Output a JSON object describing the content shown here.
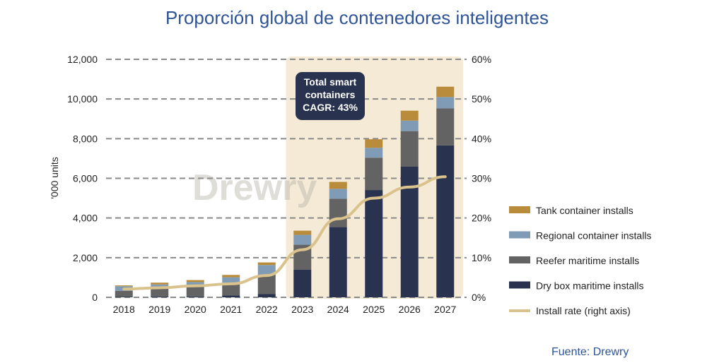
{
  "title": "Proporción global de contenedores inteligentes",
  "source": "Fuente: Drewry",
  "watermark": "Drewry",
  "annotation": [
    "Total smart",
    "containers",
    "CAGR: 43%"
  ],
  "chart_data": {
    "type": "bar",
    "stacked": true,
    "categories": [
      "2018",
      "2019",
      "2020",
      "2021",
      "2022",
      "2023",
      "2024",
      "2025",
      "2026",
      "2027"
    ],
    "ylabel": "'000 units",
    "ylim": [
      0,
      12000
    ],
    "yticks": [
      "0",
      "2,000",
      "4,000",
      "6,000",
      "8,000",
      "10,000",
      "12,000"
    ],
    "y2lim": [
      0,
      60
    ],
    "y2ticks": [
      "0%",
      "10%",
      "20%",
      "30%",
      "40%",
      "50%",
      "60%"
    ],
    "grid": "horizontal dashed",
    "legend_position": "right",
    "highlight_range": [
      "2023",
      "2027"
    ],
    "series": [
      {
        "name": "Dry box maritime installs",
        "color": "#29334f",
        "values": [
          30,
          40,
          40,
          100,
          160,
          1400,
          3540,
          5410,
          6600,
          7660
        ]
      },
      {
        "name": "Reefer maritime installs",
        "color": "#636363",
        "values": [
          300,
          390,
          480,
          600,
          990,
          1250,
          1435,
          1630,
          1780,
          1870
        ]
      },
      {
        "name": "Regional container installs",
        "color": "#7f9bb5",
        "values": [
          230,
          220,
          250,
          310,
          480,
          500,
          495,
          500,
          530,
          570
        ]
      },
      {
        "name": "Tank container installs",
        "color": "#b88c3a",
        "values": [
          40,
          90,
          100,
          120,
          130,
          210,
          350,
          430,
          500,
          520
        ]
      }
    ],
    "line": {
      "name": "Install rate (right axis)",
      "color": "#d9c28c",
      "axis": "right",
      "values": [
        2.1,
        2.4,
        2.9,
        3.4,
        5.5,
        12,
        19.8,
        25,
        27.8,
        30.4
      ]
    },
    "legend_order": [
      "Tank container installs",
      "Regional container installs",
      "Reefer maritime installs",
      "Dry box maritime installs",
      "Install rate (right axis)"
    ]
  }
}
